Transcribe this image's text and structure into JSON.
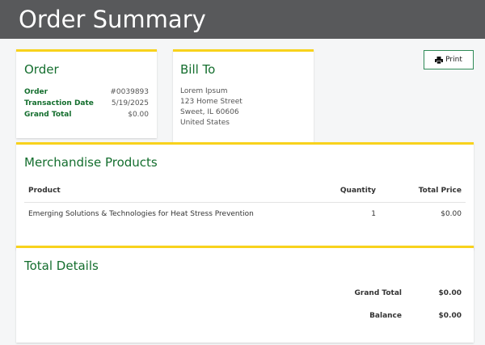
{
  "header": {
    "title": "Order Summary"
  },
  "print_label": "Print",
  "order": {
    "title": "Order",
    "rows": [
      {
        "label": "Order",
        "value": "#0039893"
      },
      {
        "label": "Transaction Date",
        "value": "5/19/2025"
      },
      {
        "label": "Grand Total",
        "value": "$0.00"
      }
    ]
  },
  "bill_to": {
    "title": "Bill To",
    "lines": [
      "Lorem Ipsum",
      "123 Home Street",
      "Sweet, IL 60606",
      "United States"
    ]
  },
  "merch": {
    "title": "Merchandise Products",
    "columns": [
      "Product",
      "Quantity",
      "Total Price"
    ],
    "rows": [
      {
        "product": "Emerging Solutions & Technologies for Heat Stress Prevention",
        "quantity": "1",
        "price": "$0.00"
      }
    ]
  },
  "totals": {
    "title": "Total Details",
    "rows": [
      {
        "label": "Grand Total",
        "value": "$0.00"
      },
      {
        "label": "Balance",
        "value": "$0.00"
      }
    ]
  },
  "colors": {
    "accent": "#f8d21c",
    "heading": "#146e2e",
    "header_bg": "#58595b"
  }
}
